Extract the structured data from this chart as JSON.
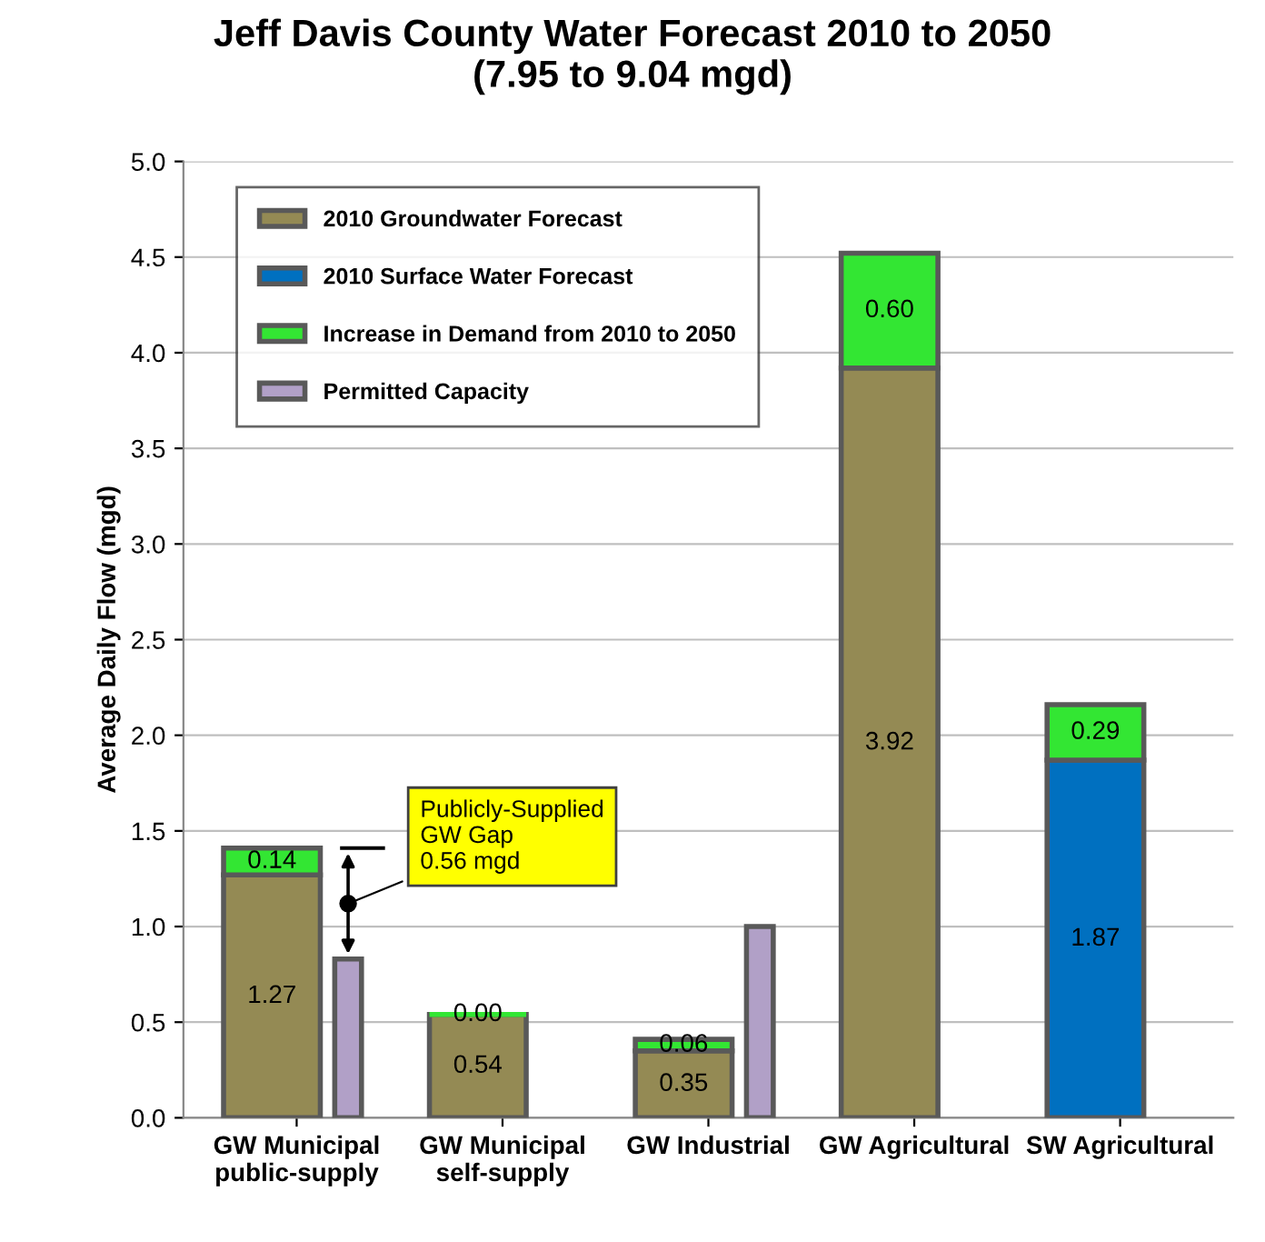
{
  "chart_data": [
    {
      "type": "bar",
      "title": "Jeff Davis County Water Forecast 2010 to 2050\n(7.95 to 9.04 mgd)",
      "ylabel": "Average Daily Flow (mgd)",
      "categories": [
        "GW Municipal\npublic-supply",
        "GW Municipal\nself-supply",
        "GW Industrial",
        "GW Agricultural",
        "SW Agricultural"
      ],
      "stacked": true,
      "series": [
        {
          "name": "2010 Groundwater Forecast",
          "color": "#948a54",
          "values": [
            1.27,
            0.54,
            0.35,
            3.92,
            null
          ],
          "value_labels": [
            "1.27",
            "0.54",
            "0.35",
            "3.92",
            null
          ]
        },
        {
          "name": "2010 Surface Water Forecast",
          "color": "#0070c0",
          "values": [
            null,
            null,
            null,
            null,
            1.87
          ],
          "value_labels": [
            null,
            null,
            null,
            null,
            "1.87"
          ]
        },
        {
          "name": "Increase in Demand from 2010 to 2050",
          "color": "#33e633",
          "values": [
            0.14,
            0.0,
            0.06,
            0.6,
            0.29
          ],
          "value_labels": [
            "0.14",
            "0.00",
            "0.06",
            "0.60",
            "0.29"
          ]
        }
      ],
      "ylim": [
        0,
        5.0
      ],
      "yticks": [
        {
          "value": 0,
          "label": "0.0"
        },
        {
          "value": 0.5,
          "label": "0.5"
        },
        {
          "value": 1.0,
          "label": "1.0"
        },
        {
          "value": 1.5,
          "label": "1.5"
        },
        {
          "value": 2.0,
          "label": "2.0"
        },
        {
          "value": 2.5,
          "label": "2.5"
        },
        {
          "value": 3.0,
          "label": "3.0"
        },
        {
          "value": 3.5,
          "label": "3.5"
        },
        {
          "value": 4.0,
          "label": "4.0"
        },
        {
          "value": 4.5,
          "label": "4.5"
        },
        {
          "value": 5.0,
          "label": "5.0"
        }
      ],
      "grid": "y",
      "legend": "top left",
      "annotations": [
        "Publicly-Supplied\nGW Gap\n0.56 mgd"
      ]
    },
    {
      "type": "bar",
      "categories": [
        null,
        null,
        null,
        null,
        null
      ],
      "series": [
        {
          "name": "Permitted Capacity",
          "color": "#b1a0c7",
          "values": [
            0.83,
            null,
            1.0,
            null,
            null
          ]
        }
      ],
      "ylim": [
        0,
        5.0
      ],
      "tick_labels": false
    }
  ]
}
